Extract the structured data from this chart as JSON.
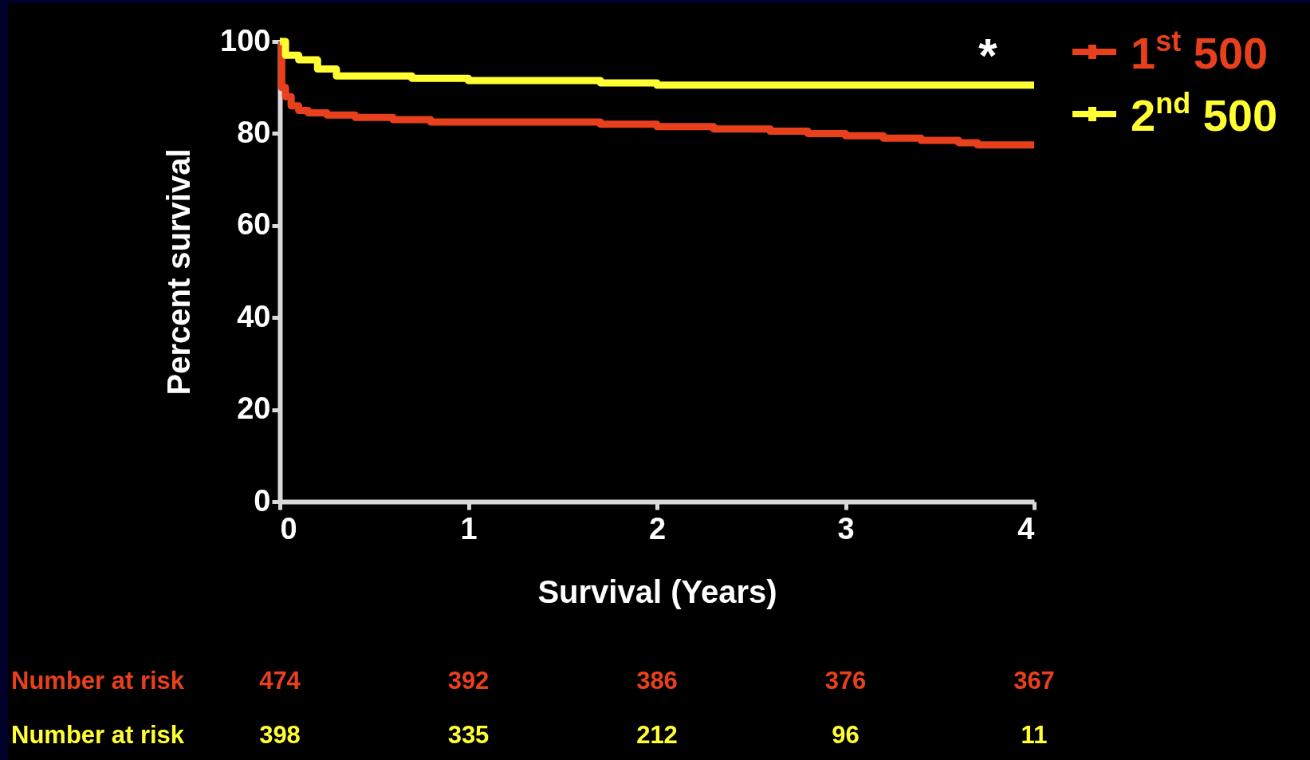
{
  "chart_data": {
    "type": "step",
    "xlabel": "Survival (Years)",
    "ylabel": "Percent survival",
    "xlim": [
      0,
      4
    ],
    "xticks": [
      0,
      1,
      2,
      3,
      4
    ],
    "ylim": [
      0,
      100
    ],
    "yticks": [
      0,
      20,
      40,
      60,
      80,
      100
    ],
    "legend": "top right",
    "grid": false,
    "series": [
      {
        "name": "1$^{st}$ 500",
        "color": "#e8401c",
        "x": [
          0,
          0.01,
          0.03,
          0.06,
          0.1,
          0.15,
          0.25,
          0.4,
          0.6,
          0.8,
          1.0,
          1.7,
          2.0,
          2.3,
          2.6,
          2.8,
          3.0,
          3.2,
          3.4,
          3.6,
          3.7,
          4.0
        ],
        "values": [
          100,
          90,
          88,
          86,
          85,
          84.5,
          84,
          83.5,
          83,
          82.5,
          82.5,
          82,
          81.5,
          81,
          80.5,
          80,
          79.5,
          79,
          78.5,
          78,
          77.5,
          77.5
        ]
      },
      {
        "name": "2$^{nd}$ 500",
        "color": "#ffff33",
        "x": [
          0,
          0.03,
          0.1,
          0.2,
          0.3,
          0.7,
          1.0,
          1.7,
          2.0,
          4.0
        ],
        "values": [
          100,
          97,
          96,
          94,
          92.5,
          92,
          91.5,
          91,
          90.5,
          90.5
        ]
      }
    ],
    "annotations": [
      "*",
      "Number at risk",
      "474",
      "392",
      "386",
      "376",
      "367",
      "Number at risk",
      "398",
      "335",
      "212",
      "96",
      "11"
    ]
  }
}
